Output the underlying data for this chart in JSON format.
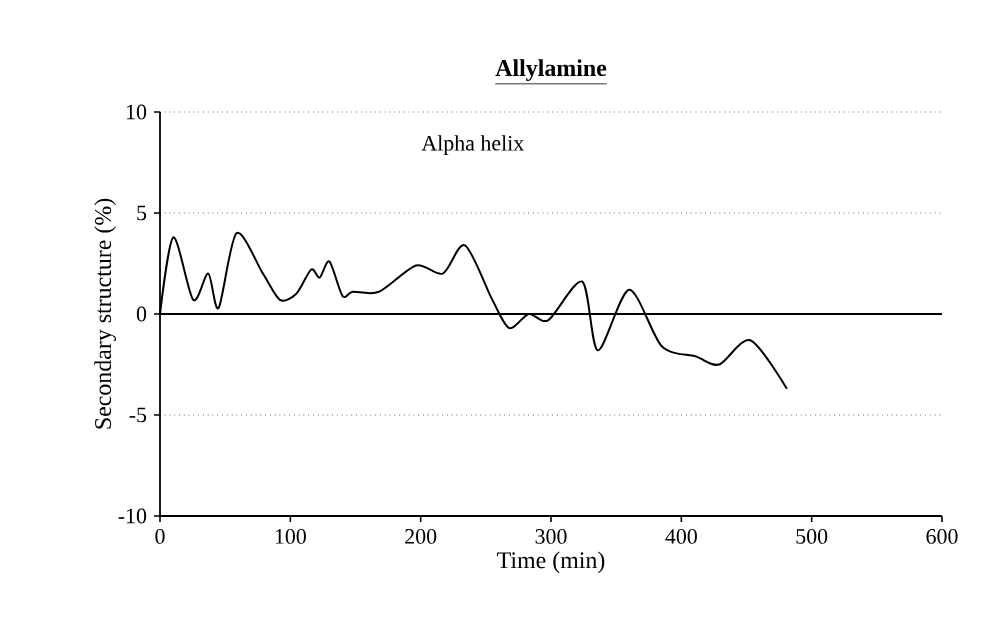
{
  "chart_data": {
    "type": "line",
    "title": "Allylamine",
    "xlabel": "Time (min)",
    "ylabel": "Secondary structure (%)",
    "annotations": [
      "Alpha helix"
    ],
    "x": [
      0,
      10.3,
      25.5,
      37,
      45,
      58.7,
      79,
      92,
      104.6,
      116,
      122.5,
      130,
      140,
      148,
      168,
      196.5,
      217,
      234,
      255,
      268,
      283,
      298,
      324,
      336,
      360,
      385,
      411,
      429,
      453,
      481
    ],
    "series": [
      {
        "color": "#000000",
        "values": [
          0,
          3.8,
          0.7,
          2.0,
          0.3,
          4.0,
          2.0,
          0.7,
          1.0,
          2.2,
          1.8,
          2.6,
          0.9,
          1.1,
          1.1,
          2.4,
          2.0,
          3.4,
          0.7,
          -0.7,
          0,
          -0.3,
          1.6,
          -1.8,
          1.2,
          -1.6,
          -2.1,
          -2.5,
          -1.3,
          -3.7
        ]
      }
    ],
    "xlim": [
      0,
      600
    ],
    "ylim": [
      -10,
      10
    ],
    "xticks": [
      0,
      100,
      200,
      300,
      400,
      500,
      600
    ],
    "yticks": [
      -10,
      -5,
      0,
      5,
      10
    ],
    "grid": "y",
    "ref_lines": [
      {
        "axis": "y",
        "value": 0,
        "color": "#000000",
        "line_style": "solid"
      }
    ],
    "line_style": "solid",
    "marker": "none"
  }
}
